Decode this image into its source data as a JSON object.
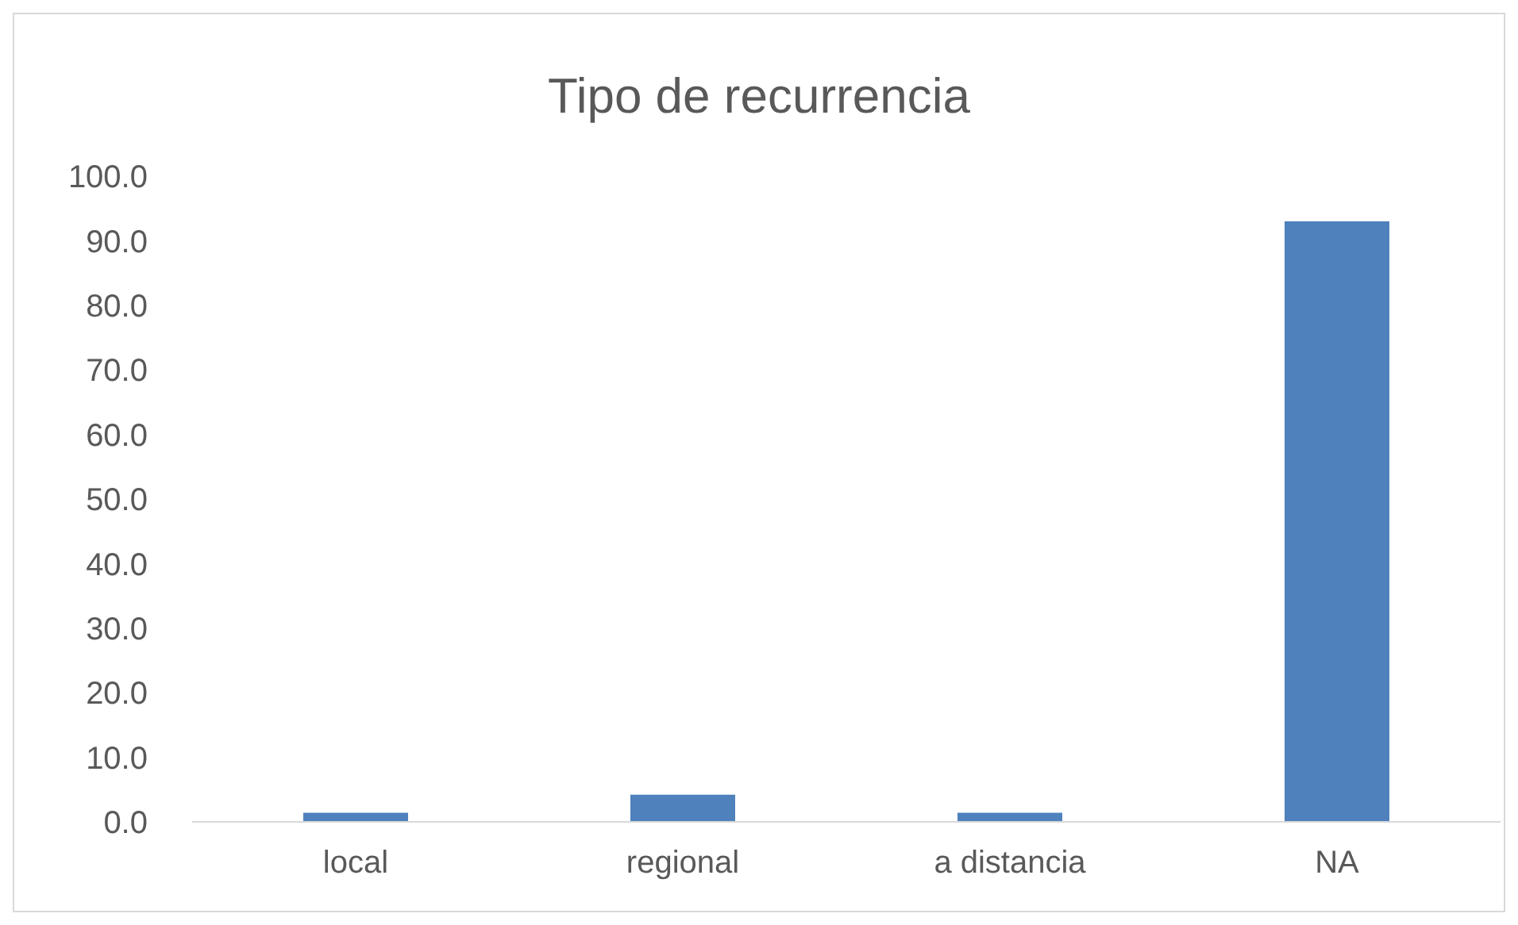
{
  "chart_data": {
    "type": "bar",
    "title": "Tipo de recurrencia",
    "categories": [
      "local",
      "regional",
      "a distancia",
      "NA"
    ],
    "values": [
      1.4,
      4.2,
      1.4,
      93.0
    ],
    "color": "#4f81bd",
    "ylim": [
      0,
      100
    ],
    "yticks": [
      {
        "value": 0,
        "label": "0.0"
      },
      {
        "value": 10,
        "label": "10.0"
      },
      {
        "value": 20,
        "label": "20.0"
      },
      {
        "value": 30,
        "label": "30.0"
      },
      {
        "value": 40,
        "label": "40.0"
      },
      {
        "value": 50,
        "label": "50.0"
      },
      {
        "value": 60,
        "label": "60.0"
      },
      {
        "value": 70,
        "label": "70.0"
      },
      {
        "value": 80,
        "label": "80.0"
      },
      {
        "value": 90,
        "label": "90.0"
      },
      {
        "value": 100,
        "label": "100.0"
      }
    ],
    "grid": false,
    "legend": false
  }
}
